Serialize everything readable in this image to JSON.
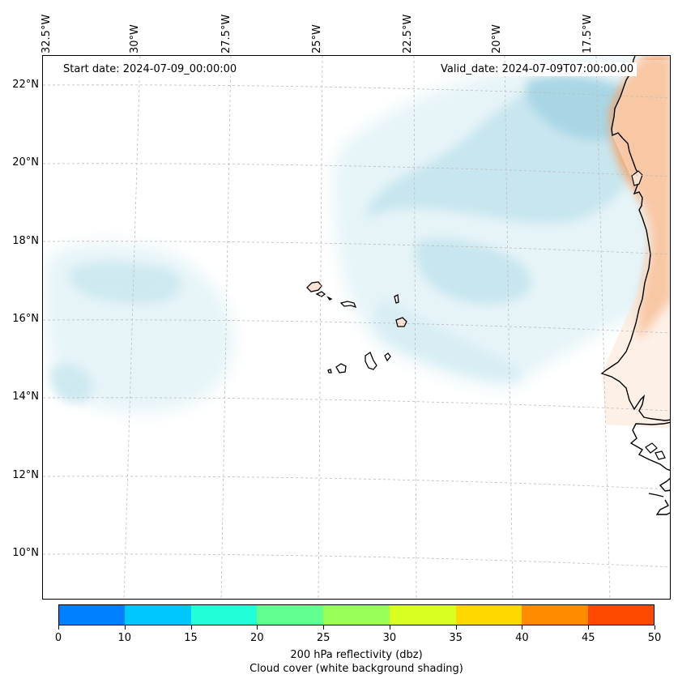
{
  "map": {
    "longitude_labels": [
      "32.5°W",
      "30°W",
      "27.5°W",
      "25°W",
      "22.5°W",
      "20°W",
      "17.5°W"
    ],
    "latitude_labels": [
      "22°N",
      "20°N",
      "18°N",
      "16°N",
      "14°N",
      "12°N",
      "10°N"
    ],
    "start_date": "Start date: 2024-07-09_00:00:00",
    "valid_date": "Valid_date: 2024-07-09T07:00:00.00"
  },
  "colorbar": {
    "tick_labels": [
      "0",
      "10",
      "15",
      "20",
      "25",
      "30",
      "35",
      "40",
      "45",
      "50"
    ],
    "colors": [
      "#0080ff",
      "#00c8ff",
      "#20ffd8",
      "#60ff90",
      "#98ff58",
      "#d8ff20",
      "#ffd800",
      "#ff8c00",
      "#ff4800"
    ],
    "label": "200 hPa reflectivity (dbz)",
    "sublabel": "Cloud cover (white background shading)"
  },
  "colors": {
    "cloud_light": "#e6f4f8",
    "cloud_mid": "#c8e6ef",
    "cloud_dark": "#a9d6e5",
    "land_warm": "#f4a46a",
    "land_pale": "#fbe3d3",
    "coastline": "#000000",
    "gridline": "#bbbbbb"
  }
}
